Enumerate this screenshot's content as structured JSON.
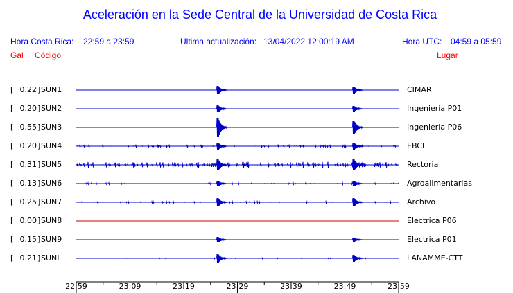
{
  "header": {
    "title": "Aceleración en la Sede Central de la Universidad de Costa Rica",
    "local_label": "Hora Costa Rica:",
    "local_range": "22:59 a 23:59",
    "update_label": "Ultima actualización:",
    "update_time": "13/04/2022 12:00:19 AM",
    "utc_label": "Hora UTC:",
    "utc_range": "04:59 a 05:59",
    "gal_label": "Gal",
    "code_label": "Código",
    "place_label": "Lugar"
  },
  "rows": [
    {
      "gal": "0.22",
      "code": "SUN1",
      "place": "CIMAR",
      "color": "#0000cc"
    },
    {
      "gal": "0.20",
      "code": "SUN2",
      "place": "Ingenieria P01",
      "color": "#0000cc"
    },
    {
      "gal": "0.55",
      "code": "SUN3",
      "place": "Ingenieria P06",
      "color": "#0000cc"
    },
    {
      "gal": "0.20",
      "code": "SUN4",
      "place": "EBCI",
      "color": "#0000cc"
    },
    {
      "gal": "0.31",
      "code": "SUN5",
      "place": "Rectoria",
      "color": "#0000cc"
    },
    {
      "gal": "0.13",
      "code": "SUN6",
      "place": "Agroalimentarias",
      "color": "#0000cc"
    },
    {
      "gal": "0.25",
      "code": "SUN7",
      "place": "Archivo",
      "color": "#0000cc"
    },
    {
      "gal": "0.00",
      "code": "SUN8",
      "place": "Electrica P06",
      "color": "#cc0000"
    },
    {
      "gal": "0.15",
      "code": "SUN9",
      "place": "Electrica P01",
      "color": "#0000cc"
    },
    {
      "gal": "0.21",
      "code": "SUNL",
      "place": "LANAMME-CTT",
      "color": "#0000cc"
    }
  ],
  "axis": {
    "major": [
      "22:59",
      "23:29",
      "23:59"
    ],
    "minor": [
      "23:09",
      "23:19",
      "23:39",
      "23:49"
    ]
  }
}
